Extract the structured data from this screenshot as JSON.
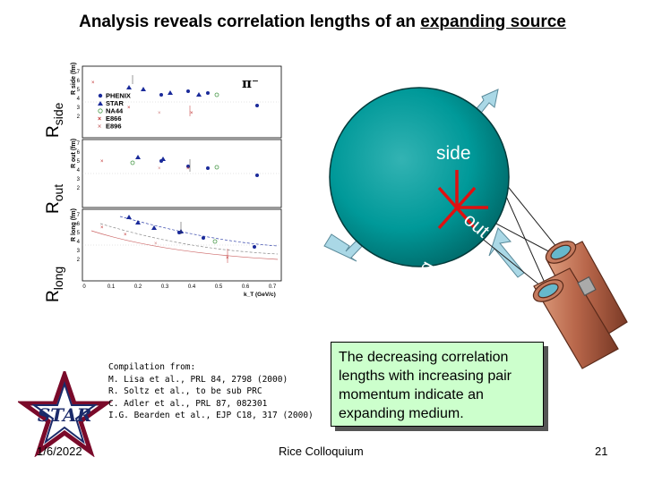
{
  "slide": {
    "title_prefix": "Analysis reveals correlation lengths of an ",
    "title_emphasis": "expanding source",
    "date": "1/6/2022",
    "venue": "Rice Colloquium",
    "page_number": "21"
  },
  "axis_labels": {
    "rside_main": "R",
    "rside_sub": "side",
    "rout_main": "R",
    "rout_sub": "out",
    "rlong_main": "R",
    "rlong_sub": "long"
  },
  "plot": {
    "pion_label": "π⁻",
    "panel_ylabels": [
      "R_side (fm)",
      "R_out (fm)",
      "R_long (fm)"
    ],
    "xlabel": "k_T (GeV/c)",
    "x_ticks": [
      "0",
      "0.1",
      "0.2",
      "0.3",
      "0.4",
      "0.5",
      "0.6",
      "0.7"
    ],
    "y_ticks": [
      "2",
      "3",
      "4",
      "5",
      "6",
      "7"
    ],
    "legend": [
      "PHENIX",
      "STAR",
      "NA44",
      "E866",
      "E896"
    ]
  },
  "diagram": {
    "side_label": "side",
    "out_label": "out",
    "long_label": "long"
  },
  "citation": {
    "lines": [
      "Compilation from:",
      "M. Lisa et al., PRL 84, 2798 (2000)",
      "R. Soltz et al., to be sub PRC",
      "C. Adler et al., PRL 87, 082301",
      "I.G. Bearden et al., EJP C18, 317 (2000)"
    ]
  },
  "callout": {
    "text": "The decreasing correlation lengths with increasing pair momentum indicate an expanding medium."
  },
  "logo": {
    "text": "STAR"
  },
  "colors": {
    "sphere": "#009999",
    "callout_bg": "#ccffcc",
    "arrow": "#aad8e6",
    "axis_cross": "#e01010",
    "star_logo": "#7a0a2a"
  }
}
